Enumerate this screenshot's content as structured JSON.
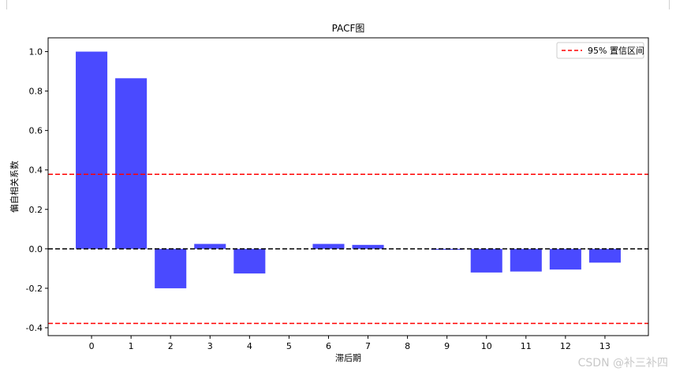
{
  "chart_data": {
    "type": "bar",
    "title": "PACF图",
    "xlabel": "滞后期",
    "ylabel": "偏自相关系数",
    "categories": [
      "0",
      "1",
      "2",
      "3",
      "4",
      "5",
      "6",
      "7",
      "8",
      "9",
      "10",
      "11",
      "12",
      "13"
    ],
    "values": [
      1.0,
      0.865,
      -0.2,
      0.025,
      -0.125,
      0.0,
      0.025,
      0.02,
      0.0,
      -0.005,
      -0.12,
      -0.115,
      -0.105,
      -0.07
    ],
    "ylim": [
      -0.44,
      1.07
    ],
    "xlim": [
      -1.1,
      14.1
    ],
    "yticks": [
      -0.4,
      -0.2,
      0.0,
      0.2,
      0.4,
      0.6,
      0.8,
      1.0
    ],
    "ytick_labels": [
      "-0.4",
      "-0.2",
      "0.0",
      "0.2",
      "0.4",
      "0.6",
      "0.8",
      "1.0"
    ],
    "confidence_bound": 0.378,
    "bar_color": "#4a4aff",
    "conf_color": "#ff0000",
    "zero_line_color": "#000000",
    "legend": {
      "label": "95% 置信区间",
      "position": "upper right"
    },
    "grid": false
  },
  "watermark": "CSDN @补三补四"
}
